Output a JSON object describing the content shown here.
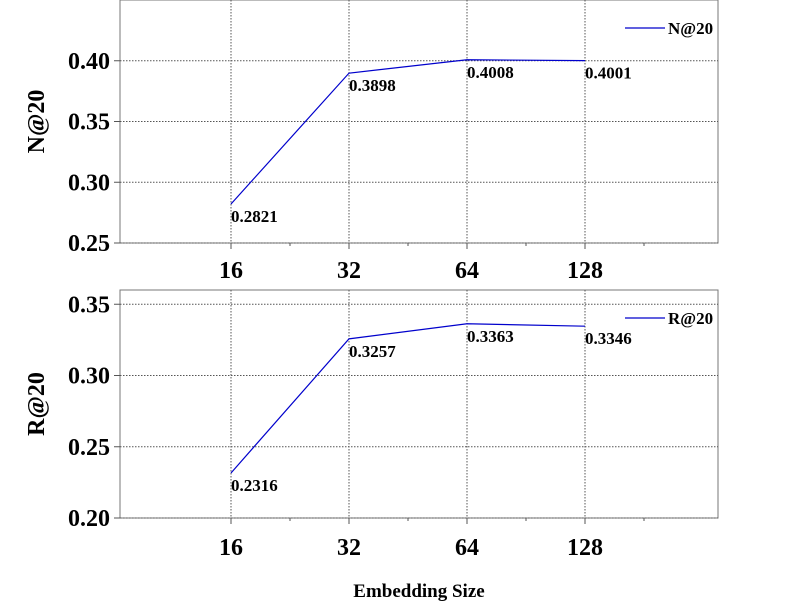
{
  "chart_data": [
    {
      "type": "line",
      "ylabel": "N@20",
      "categories": [
        "16",
        "32",
        "64",
        "128"
      ],
      "series": [
        {
          "name": "N@20",
          "color": "#0000cc",
          "values": [
            0.2821,
            0.3898,
            0.4008,
            0.4001
          ]
        }
      ],
      "ylim": [
        0.25,
        0.45
      ],
      "yticks": [
        {
          "value": 0.25,
          "label": "0.25"
        },
        {
          "value": 0.3,
          "label": "0.30"
        },
        {
          "value": 0.35,
          "label": "0.35"
        },
        {
          "value": 0.4,
          "label": "0.40"
        }
      ],
      "grid": true,
      "legend": "upper right"
    },
    {
      "type": "line",
      "ylabel": "R@20",
      "xlabel": "Embedding Size",
      "categories": [
        "16",
        "32",
        "64",
        "128"
      ],
      "series": [
        {
          "name": "R@20",
          "color": "#0000cc",
          "values": [
            0.2316,
            0.3257,
            0.3363,
            0.3346
          ]
        }
      ],
      "ylim": [
        0.2,
        0.36
      ],
      "yticks": [
        {
          "value": 0.2,
          "label": "0.20"
        },
        {
          "value": 0.25,
          "label": "0.25"
        },
        {
          "value": 0.3,
          "label": "0.30"
        },
        {
          "value": 0.35,
          "label": "0.35"
        }
      ],
      "grid": true,
      "legend": "upper right"
    }
  ]
}
